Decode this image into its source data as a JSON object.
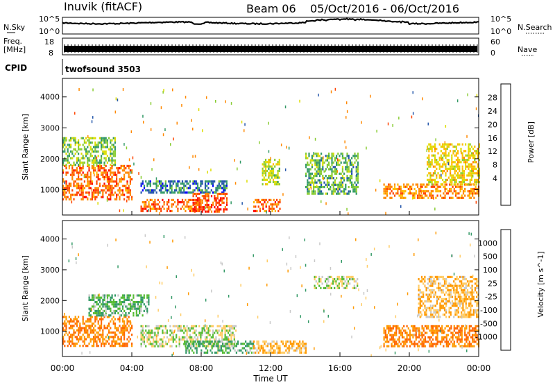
{
  "header": {
    "station": "Inuvik (fitACF)",
    "beam": "Beam 06",
    "date_range": "05/Oct/2016 - 06/Oct/2016"
  },
  "noise_panel": {
    "left_label": "N.Sky",
    "right_label": "N.Search",
    "left_ticks": [
      "10^5",
      "10^0"
    ],
    "right_ticks": [
      "10^5",
      "10^0"
    ]
  },
  "freq_panel": {
    "left_label_1": "Freq.",
    "left_label_2": "[MHz]",
    "right_label": "Nave",
    "left_ticks": [
      "18",
      "8"
    ],
    "right_ticks": [
      "60",
      "0"
    ]
  },
  "cpid_panel": {
    "label": "CPID",
    "value": "twofsound 3503"
  },
  "power_panel": {
    "ylabel": "Slant Range [km]",
    "yticks": [
      "4000",
      "3000",
      "2000",
      "1000"
    ],
    "colorbar_label": "Power [dB]",
    "colorbar_ticks": [
      "28",
      "24",
      "20",
      "16",
      "12",
      "8",
      "4"
    ],
    "colorbar_colors": [
      "#ff0000",
      "#ff4400",
      "#ff8800",
      "#ffbb00",
      "#dddd00",
      "#88cc33",
      "#339966",
      "#2255aa",
      "#0000ff"
    ]
  },
  "velocity_panel": {
    "ylabel": "Slant Range [km]",
    "yticks": [
      "4000",
      "3000",
      "2000",
      "1000"
    ],
    "colorbar_label": "Velocity [m s^-1]",
    "colorbar_ticks": [
      "1000",
      "500",
      "100",
      "25",
      "-25",
      "-100",
      "-500",
      "-1000"
    ],
    "colorbar_colors": [
      "#2244aa",
      "#3377aa",
      "#339966",
      "#55bb33",
      "#c8c8c8",
      "#ffcc66",
      "#ff9900",
      "#ff6600",
      "#ff0000"
    ]
  },
  "xaxis": {
    "label": "Time UT",
    "ticks": [
      "00:00",
      "04:00",
      "08:00",
      "12:00",
      "16:00",
      "20:00",
      "00:00"
    ]
  },
  "chart_data": [
    {
      "type": "heatmap",
      "title": "Power",
      "xlabel": "Time UT",
      "ylabel": "Slant Range [km]",
      "x_range": [
        "00:00",
        "24:00"
      ],
      "ylim": [
        180,
        4600
      ],
      "colorbar": {
        "label": "Power [dB]",
        "range": [
          0,
          32
        ]
      },
      "regions": [
        {
          "t0": 0.0,
          "t1": 4.0,
          "r0": 700,
          "r1": 1800,
          "value": 26
        },
        {
          "t0": 0.0,
          "t1": 3.0,
          "r0": 1800,
          "r1": 2700,
          "value": 12
        },
        {
          "t0": 4.5,
          "t1": 8.0,
          "r0": 300,
          "r1": 700,
          "value": 26
        },
        {
          "t0": 4.5,
          "t1": 9.5,
          "r0": 900,
          "r1": 1300,
          "value": 6
        },
        {
          "t0": 7.5,
          "t1": 9.5,
          "r0": 300,
          "r1": 900,
          "value": 28
        },
        {
          "t0": 11.0,
          "t1": 12.5,
          "r0": 300,
          "r1": 700,
          "value": 26
        },
        {
          "t0": 11.5,
          "t1": 12.5,
          "r0": 1200,
          "r1": 2000,
          "value": 14
        },
        {
          "t0": 14.0,
          "t1": 17.0,
          "r0": 900,
          "r1": 2200,
          "value": 10
        },
        {
          "t0": 18.5,
          "t1": 24.0,
          "r0": 700,
          "r1": 1200,
          "value": 24
        },
        {
          "t0": 21.0,
          "t1": 24.0,
          "r0": 1200,
          "r1": 2500,
          "value": 18
        }
      ]
    },
    {
      "type": "heatmap",
      "title": "Velocity",
      "xlabel": "Time UT",
      "ylabel": "Slant Range [km]",
      "x_range": [
        "00:00",
        "24:00"
      ],
      "ylim": [
        180,
        4600
      ],
      "colorbar": {
        "label": "Velocity [m s^-1]",
        "range": [
          -1000,
          1000
        ]
      },
      "regions": [
        {
          "t0": 0.0,
          "t1": 4.0,
          "r0": 500,
          "r1": 1500,
          "value": -500
        },
        {
          "t0": 1.5,
          "t1": 5.0,
          "r0": 1500,
          "r1": 2200,
          "value": 100
        },
        {
          "t0": 4.5,
          "t1": 10.0,
          "r0": 500,
          "r1": 1200,
          "value": 0
        },
        {
          "t0": 7.0,
          "t1": 11.0,
          "r0": 300,
          "r1": 700,
          "value": 100
        },
        {
          "t0": 11.0,
          "t1": 14.0,
          "r0": 300,
          "r1": 700,
          "value": -100
        },
        {
          "t0": 14.5,
          "t1": 17.0,
          "r0": 2400,
          "r1": 2800,
          "value": 0
        },
        {
          "t0": 18.5,
          "t1": 24.0,
          "r0": 500,
          "r1": 1200,
          "value": -500
        },
        {
          "t0": 20.5,
          "t1": 24.0,
          "r0": 1500,
          "r1": 2800,
          "value": -100
        }
      ]
    }
  ]
}
